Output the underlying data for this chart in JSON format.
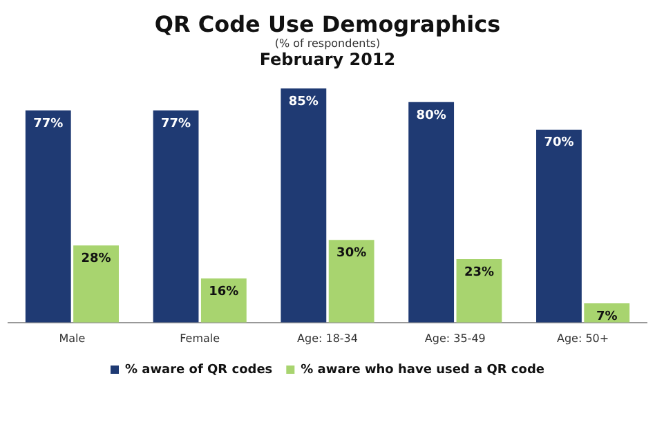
{
  "chart_data": {
    "type": "bar",
    "title": "QR Code Use Demographics",
    "subtitle": "(% of respondents)",
    "annotations": [
      "February 2012"
    ],
    "categories": [
      "Male",
      "Female",
      "Age: 18-34",
      "Age: 35-49",
      "Age: 50+"
    ],
    "series": [
      {
        "name": "% aware of QR codes",
        "color": "#1f3a73",
        "values": [
          77,
          77,
          85,
          80,
          70
        ],
        "value_labels": [
          "77%",
          "77%",
          "85%",
          "80%",
          "70%"
        ]
      },
      {
        "name": "% aware who have used a QR code",
        "color": "#a8d46f",
        "values": [
          28,
          16,
          30,
          23,
          7
        ],
        "value_labels": [
          "28%",
          "16%",
          "30%",
          "23%",
          "7%"
        ]
      }
    ],
    "tick_labels": "x",
    "grid": false,
    "legend": "bottom"
  }
}
